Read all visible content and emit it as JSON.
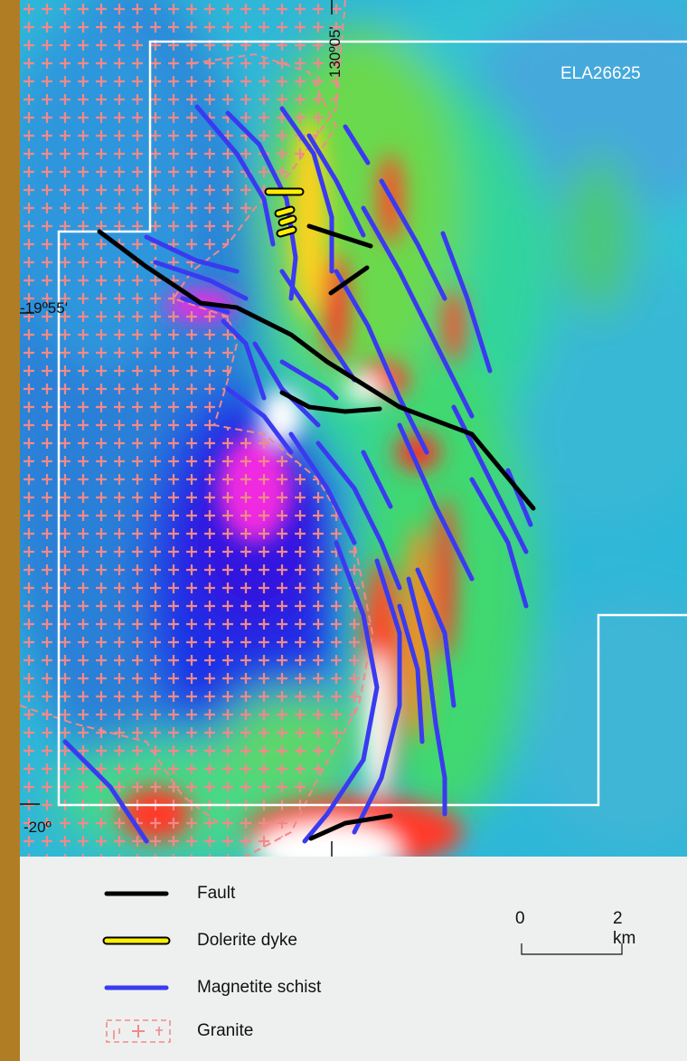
{
  "map": {
    "tenement_label": "ELA26625",
    "longitude_label": "130º05'",
    "latitude_labels": [
      "-19º55'",
      "-20º"
    ]
  },
  "legend": {
    "items": [
      {
        "label": "Fault",
        "color": "#000000",
        "symbol": "line"
      },
      {
        "label": "Dolerite dyke",
        "color": "#ffef00",
        "symbol": "outlined-line"
      },
      {
        "label": "Magnetite schist",
        "color": "#3a3af0",
        "symbol": "line"
      },
      {
        "label": "Granite",
        "color": "#f08a8a",
        "symbol": "dashed-plus-box"
      }
    ]
  },
  "scale": {
    "start_label": "0",
    "end_label": "2 km"
  },
  "colors": {
    "frame": "#b07d24",
    "legend_bg": "#eef0ef",
    "boundary": "#ffffff",
    "fault": "#000000",
    "dyke": "#ffef00",
    "schist": "#3a3af0",
    "granite_symbol": "#f08a8a"
  }
}
